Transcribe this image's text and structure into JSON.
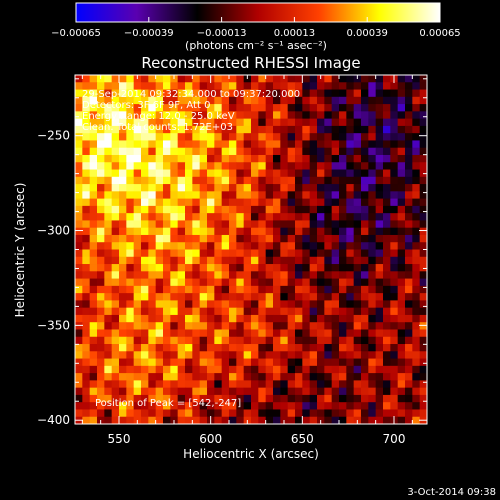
{
  "chart_data": {
    "type": "heatmap",
    "title": "Reconstructed RHESSI Image",
    "xlabel": "Heliocentric X (arcsec)",
    "ylabel": "Heliocentric Y (arcsec)",
    "xlim": [
      526,
      718
    ],
    "ylim": [
      -402,
      -218
    ],
    "xticks": [
      550,
      600,
      650,
      700
    ],
    "yticks": [
      -250,
      -300,
      -350,
      -400
    ],
    "xtick_labels": [
      "550",
      "600",
      "650",
      "700"
    ],
    "ytick_labels": [
      "−250",
      "−300",
      "−350",
      "−400"
    ],
    "colorbar": {
      "range": [
        -0.00065,
        0.00065
      ],
      "ticks": [
        -0.00065,
        -0.00039,
        -0.00013,
        0.00013,
        0.00039,
        0.00065
      ],
      "tick_labels": [
        "−0.00065",
        "−0.00039",
        "−0.00013",
        "0.00013",
        "0.00039",
        "0.00065"
      ],
      "unit_label": "(photons cm⁻² s⁻¹ asec⁻²)",
      "colors": [
        "#0000ff",
        "#5a00b0",
        "#000000",
        "#b00000",
        "#ff4000",
        "#ffff00",
        "#ffffff"
      ]
    },
    "annotations": [
      "29-Sep-2014 09:32:34.000 to 09:37:20.000",
      "Detectors: 3F 6F 9F, Att 0",
      "Energy Range: 12.0 - 25.0 keV",
      "Clean. Total counts: 1.72E+03"
    ],
    "peak_label": "Position of Peak = [542,-247]",
    "peak": {
      "x": 542,
      "y": -247
    },
    "grid": false,
    "legend": "top"
  },
  "footer": {
    "timestamp": "3-Oct-2014 09:38"
  }
}
